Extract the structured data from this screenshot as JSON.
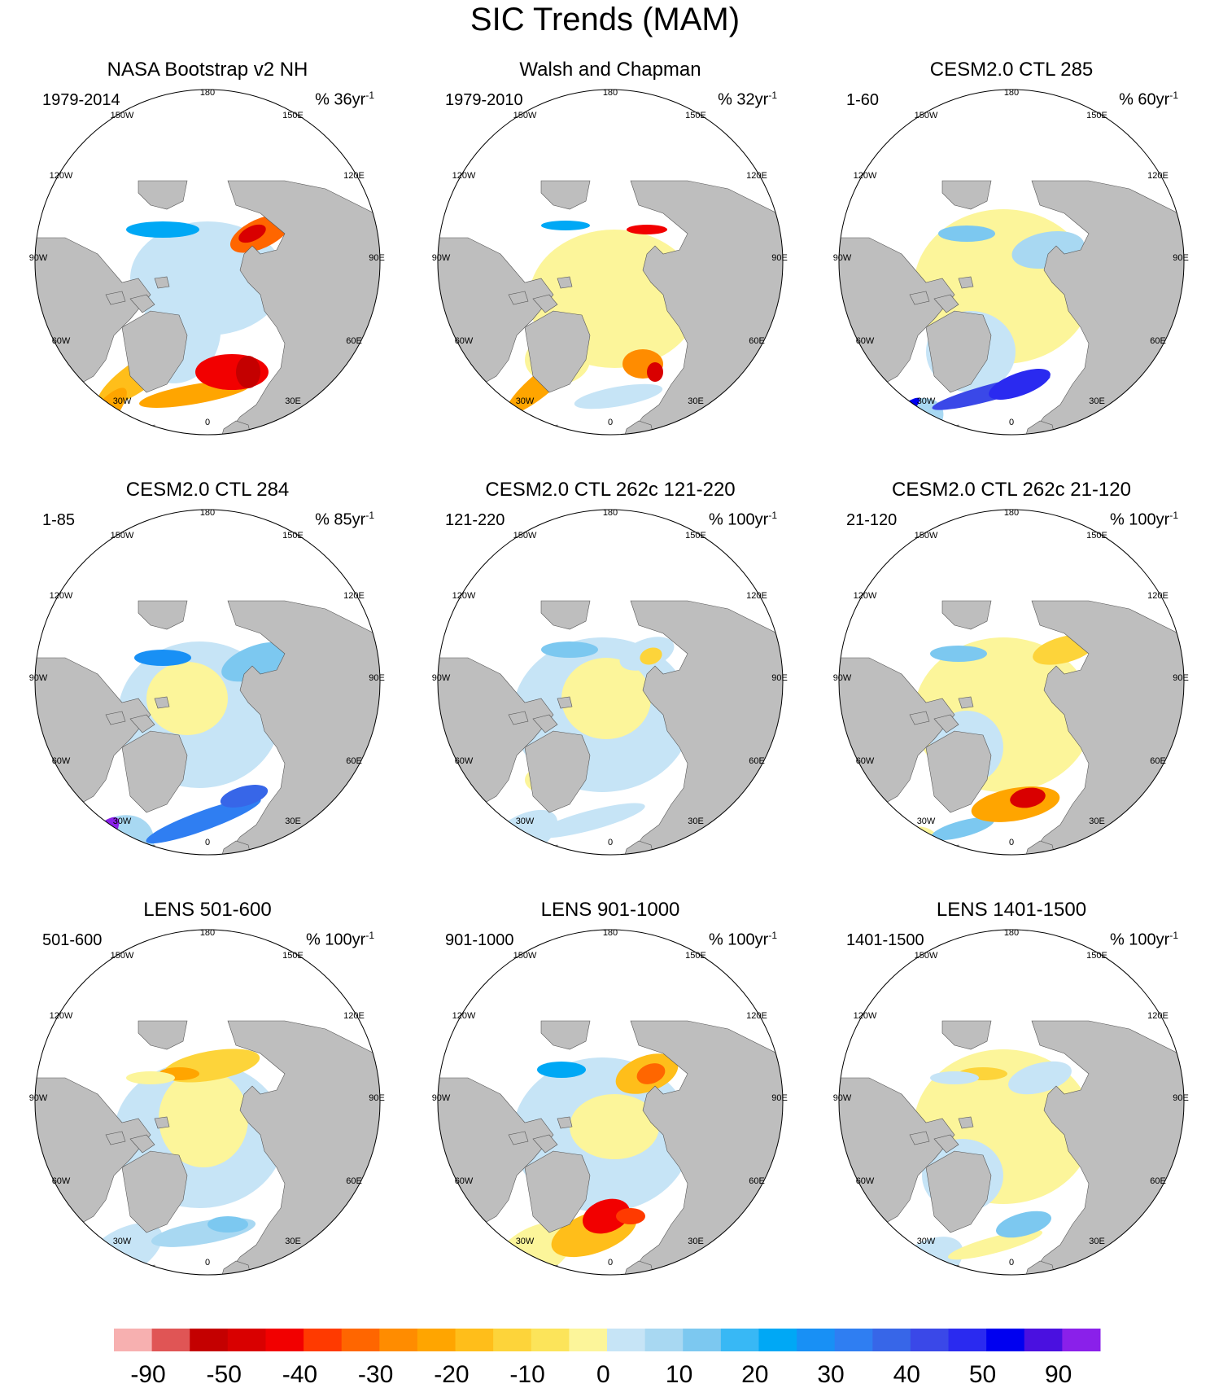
{
  "figure_title": "SIC Trends (MAM)",
  "longitude_labels": {
    "l180": "180",
    "l150e": "150E",
    "l120e": "120E",
    "l90e": "90E",
    "l60e": "60E",
    "l30e": "30E",
    "l0": "0",
    "l30w": "30W",
    "l60w": "60W",
    "l90w": "90W",
    "l120w": "120W",
    "l150w": "150W"
  },
  "chart_data": {
    "type": "heatmap",
    "projection": "north polar stereographic",
    "colors": {
      "land": "#bebebe",
      "ocean_no_trend": "#ffffff"
    },
    "colorbar": {
      "labels": [
        "-90",
        "-50",
        "-40",
        "-30",
        "-20",
        "-10",
        "0",
        "10",
        "20",
        "30",
        "40",
        "50",
        "90"
      ],
      "colors": [
        "#f7b0b0",
        "#e05555",
        "#c40000",
        "#d90000",
        "#f20000",
        "#ff3a00",
        "#ff6600",
        "#ff8c00",
        "#ffa500",
        "#ffbe1a",
        "#fdd43a",
        "#fce45a",
        "#fcf59a",
        "#c6e4f6",
        "#a8d8f2",
        "#7cc8f0",
        "#38b8f5",
        "#00a8f5",
        "#1890f5",
        "#2f7ef2",
        "#3766e8",
        "#3a48e8",
        "#2a2af0",
        "#0000f0",
        "#4a10e0",
        "#8a20ea"
      ]
    },
    "panels": [
      {
        "title": "NASA Bootstrap v2 NH",
        "period": "1979-2014",
        "scale": "% 36yr",
        "scale_exp": "-1",
        "dominant_sign": "negative",
        "features": [
          "strong decline Barents/Kara Sea",
          "decline Labrador Sea and Baffin Bay",
          "decline Sea of Okhotsk",
          "increase Bering Sea"
        ]
      },
      {
        "title": "Walsh and Chapman",
        "period": "1979-2010",
        "scale": "% 32yr",
        "scale_exp": "-1",
        "dominant_sign": "negative",
        "features": [
          "weak decline central Arctic",
          "decline Labrador Sea",
          "mixed Barents Sea"
        ]
      },
      {
        "title": "CESM2.0 CTL 285",
        "period": "1-60",
        "scale": "% 60yr",
        "scale_exp": "-1",
        "dominant_sign": "positive",
        "features": [
          "strong increase Labrador Sea",
          "strong increase Greenland-Barents sea ice edge",
          "weak increase Bering and Okhotsk"
        ]
      },
      {
        "title": "CESM2.0 CTL 284",
        "period": "1-85",
        "scale": "% 85yr",
        "scale_exp": "-1",
        "dominant_sign": "positive",
        "features": [
          "very strong increase Labrador Sea",
          "increase Greenland-Barents sea ice edge",
          "increase Sea of Okhotsk"
        ]
      },
      {
        "title": "CESM2.0 CTL 262c 121-220",
        "period": "121-220",
        "scale": "% 100yr",
        "scale_exp": "-1",
        "dominant_sign": "mixed",
        "features": [
          "weak increase Labrador Sea",
          "weak decline Sea of Okhotsk"
        ]
      },
      {
        "title": "CESM2.0 CTL 262c 21-120",
        "period": "21-120",
        "scale": "% 100yr",
        "scale_exp": "-1",
        "dominant_sign": "mixed",
        "features": [
          "strong decline Barents Sea",
          "weak decline Okhotsk",
          "weak increase Labrador Sea"
        ]
      },
      {
        "title": "LENS 501-600",
        "period": "501-600",
        "scale": "% 100yr",
        "scale_exp": "-1",
        "dominant_sign": "mixed",
        "features": [
          "decline Bering Sea",
          "weak increase Barents Sea"
        ]
      },
      {
        "title": "LENS 901-1000",
        "period": "901-1000",
        "scale": "% 100yr",
        "scale_exp": "-1",
        "dominant_sign": "negative",
        "features": [
          "strong decline Greenland Sea",
          "decline Sea of Okhotsk",
          "increase Bering Sea"
        ]
      },
      {
        "title": "LENS 1401-1500",
        "period": "1401-1500",
        "scale": "% 100yr",
        "scale_exp": "-1",
        "dominant_sign": "mixed",
        "features": [
          "weak decline Labrador Sea",
          "weak increase Barents Sea"
        ]
      }
    ]
  }
}
